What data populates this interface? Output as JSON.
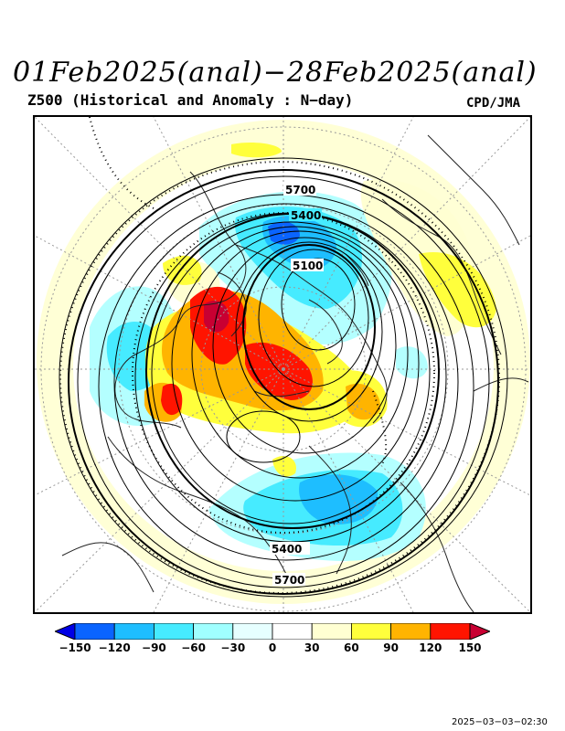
{
  "header": {
    "title": "01Feb2025(anal)−28Feb2025(anal)",
    "subtitle": "Z500 (Historical and Anomaly : N−day)",
    "agency": "CPD/JMA"
  },
  "map": {
    "projection": "polar-stereographic-north",
    "field": "Z500",
    "contour_labels": [
      "5700",
      "5400",
      "5100",
      "5400",
      "5700"
    ]
  },
  "colorbar": {
    "ticks": [
      "−150",
      "−120",
      "−90",
      "−60",
      "−30",
      "0",
      "30",
      "60",
      "90",
      "120",
      "150"
    ],
    "colors": [
      "#0000e6",
      "#0a64ff",
      "#1ebeff",
      "#46ebff",
      "#a0ffff",
      "#e6ffff",
      "#ffffff",
      "#ffffd2",
      "#ffff3c",
      "#ffb400",
      "#ff1400",
      "#c80032"
    ]
  },
  "footer": {
    "timestamp": "2025−03−03−02:30"
  }
}
